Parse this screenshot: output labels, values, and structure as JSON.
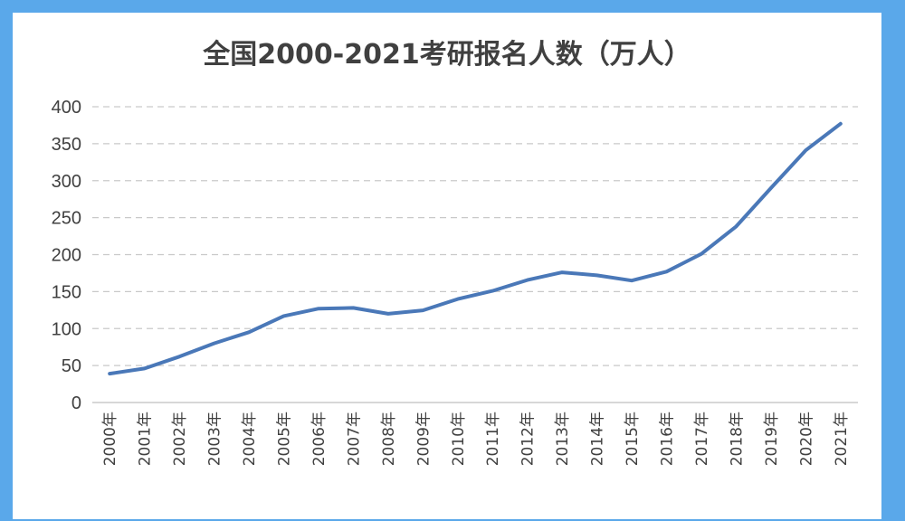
{
  "chart_data": {
    "type": "line",
    "title": "全国2000-2021考研报名人数（万人）",
    "xlabel": "",
    "ylabel": "",
    "categories": [
      "2000年",
      "2001年",
      "2002年",
      "2003年",
      "2004年",
      "2005年",
      "2006年",
      "2007年",
      "2008年",
      "2009年",
      "2010年",
      "2011年",
      "2012年",
      "2013年",
      "2014年",
      "2015年",
      "2016年",
      "2017年",
      "2018年",
      "2019年",
      "2020年",
      "2021年"
    ],
    "series": [
      {
        "values": [
          39,
          46,
          62,
          80,
          95,
          117,
          127,
          128,
          120,
          124.6,
          140,
          151,
          165.6,
          176,
          172,
          164.9,
          177,
          201,
          238,
          290,
          341,
          377
        ]
      }
    ],
    "ylim": [
      0,
      400
    ],
    "yticks": [
      "0",
      "50",
      "100",
      "150",
      "200",
      "250",
      "300",
      "350",
      "400"
    ],
    "ytick_values": [
      0,
      50,
      100,
      150,
      200,
      250,
      300,
      350,
      400
    ],
    "grid": true,
    "legend": "none",
    "colors": {
      "line": "#4a78b8",
      "frame": "#5aa8ea",
      "grid": "#c9c9c9"
    }
  }
}
